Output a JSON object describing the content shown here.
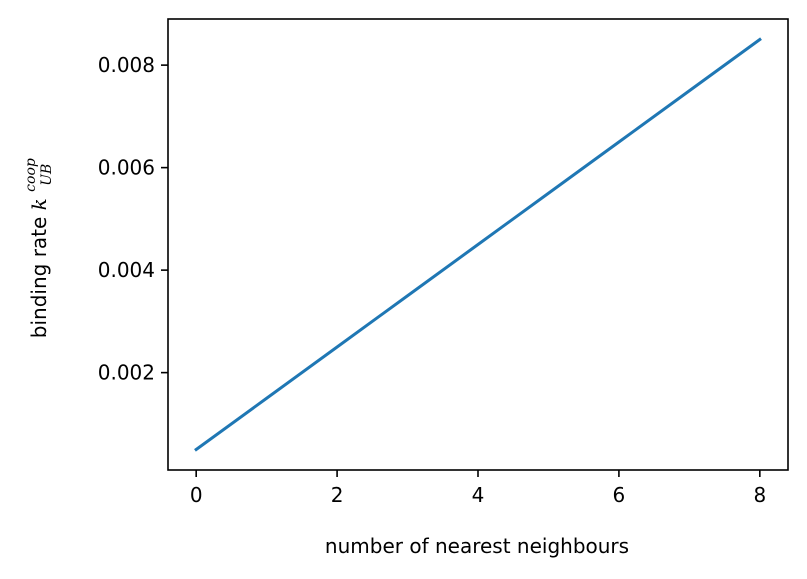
{
  "chart_data": {
    "type": "line",
    "title": "",
    "xlabel": "number of nearest neighbours",
    "ylabel": {
      "prefix": "binding rate ",
      "symbol": "k",
      "superscript": "coop",
      "subscript": "UB"
    },
    "xlim": [
      -0.4,
      8.4
    ],
    "ylim": [
      0.0001,
      0.0089
    ],
    "xticks": [
      0,
      2,
      4,
      6,
      8
    ],
    "xtick_labels": [
      "0",
      "2",
      "4",
      "6",
      "8"
    ],
    "yticks": [
      0.002,
      0.004,
      0.006,
      0.008
    ],
    "ytick_labels": [
      "0.002",
      "0.004",
      "0.006",
      "0.008"
    ],
    "grid": false,
    "series": [
      {
        "x": [
          0,
          1,
          2,
          3,
          4,
          5,
          6,
          7,
          8
        ],
        "y": [
          0.0005,
          0.0015,
          0.0025,
          0.0035,
          0.0045,
          0.0055,
          0.0065,
          0.0075,
          0.0085
        ],
        "color": "#1f77b4"
      }
    ]
  }
}
